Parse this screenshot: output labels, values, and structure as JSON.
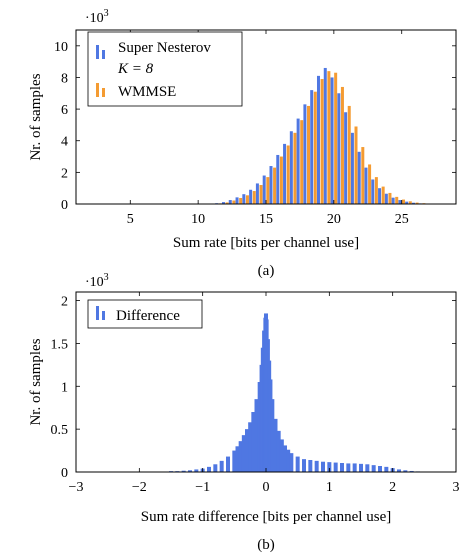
{
  "chart_data": [
    {
      "type": "bar",
      "caption": "(a)",
      "xlabel": "Sum rate [bits per channel use]",
      "ylabel": "Nr. of samples",
      "y_multiplier_base": "·10",
      "y_multiplier_exp": "3",
      "xlim": [
        1,
        29
      ],
      "ylim": [
        0,
        11
      ],
      "xticks": [
        5,
        10,
        15,
        20,
        25
      ],
      "yticks": [
        0,
        2,
        4,
        6,
        8,
        10
      ],
      "legend_position": "top-left",
      "x": [
        11.5,
        12,
        12.5,
        13,
        13.5,
        14,
        14.5,
        15,
        15.5,
        16,
        16.5,
        17,
        17.5,
        18,
        18.5,
        19,
        19.5,
        20,
        20.5,
        21,
        21.5,
        22,
        22.5,
        23,
        23.5,
        24,
        24.5,
        25,
        25.5,
        26,
        26.5
      ],
      "series": [
        {
          "name_line1": "Super Nesterov",
          "name_line2": "K = 8",
          "color": "#4f77e2",
          "values": [
            0.05,
            0.12,
            0.25,
            0.42,
            0.62,
            0.9,
            1.3,
            1.8,
            2.4,
            3.1,
            3.8,
            4.6,
            5.4,
            6.3,
            7.2,
            8.1,
            8.6,
            8.0,
            7.0,
            5.8,
            4.5,
            3.3,
            2.3,
            1.55,
            1.0,
            0.65,
            0.4,
            0.25,
            0.15,
            0.08,
            0.04
          ]
        },
        {
          "name": "WMMSE",
          "color": "#f49b32",
          "values": [
            0.04,
            0.1,
            0.22,
            0.38,
            0.55,
            0.82,
            1.2,
            1.7,
            2.3,
            3.0,
            3.7,
            4.5,
            5.3,
            6.2,
            7.1,
            7.9,
            8.4,
            8.3,
            7.4,
            6.2,
            4.9,
            3.6,
            2.5,
            1.7,
            1.1,
            0.7,
            0.45,
            0.28,
            0.17,
            0.09,
            0.05
          ]
        }
      ]
    },
    {
      "type": "bar",
      "caption": "(b)",
      "xlabel": "Sum rate difference [bits per channel use]",
      "ylabel": "Nr. of samples",
      "y_multiplier_base": "·10",
      "y_multiplier_exp": "3",
      "xlim": [
        -3,
        3
      ],
      "ylim": [
        0,
        2.1
      ],
      "xticks": [
        -3,
        -2,
        -1,
        0,
        1,
        2,
        3
      ],
      "xtick_labels": [
        "−3",
        "−2",
        "−1",
        "0",
        "1",
        "2",
        "3"
      ],
      "yticks": [
        0,
        0.5,
        1,
        1.5,
        2
      ],
      "ytick_labels": [
        "0",
        "0.5",
        "1",
        "1.5",
        "2"
      ],
      "legend_position": "top-left",
      "bin_width": 0.02,
      "x": [
        -2.9,
        -2.8,
        -2.7,
        -2.6,
        -2.5,
        -2.4,
        -2.3,
        -2.2,
        -2.1,
        -2.0,
        -1.9,
        -1.8,
        -1.7,
        -1.6,
        -1.5,
        -1.4,
        -1.3,
        -1.2,
        -1.1,
        -1.0,
        -0.9,
        -0.8,
        -0.7,
        -0.6,
        -0.5,
        -0.45,
        -0.4,
        -0.35,
        -0.3,
        -0.25,
        -0.2,
        -0.15,
        -0.1,
        -0.07,
        -0.05,
        -0.03,
        -0.01,
        0.0,
        0.01,
        0.03,
        0.05,
        0.07,
        0.1,
        0.15,
        0.2,
        0.25,
        0.3,
        0.35,
        0.4,
        0.5,
        0.6,
        0.7,
        0.8,
        0.9,
        1.0,
        1.1,
        1.2,
        1.3,
        1.4,
        1.5,
        1.6,
        1.7,
        1.8,
        1.9,
        2.0,
        2.1,
        2.2,
        2.3,
        2.4,
        2.5,
        2.6,
        2.7,
        2.8,
        2.9
      ],
      "series": [
        {
          "name": "Difference",
          "color": "#4f77e2",
          "values": [
            0.0,
            0.0,
            0.0,
            0.0,
            0.0,
            0.0,
            0.0,
            0.0,
            0.0,
            0.0,
            0.0,
            0.0,
            0.005,
            0.005,
            0.01,
            0.01,
            0.015,
            0.02,
            0.03,
            0.04,
            0.06,
            0.09,
            0.13,
            0.18,
            0.25,
            0.3,
            0.36,
            0.43,
            0.5,
            0.58,
            0.7,
            0.85,
            1.05,
            1.25,
            1.45,
            1.65,
            1.8,
            1.85,
            1.78,
            1.55,
            1.3,
            1.08,
            0.85,
            0.62,
            0.48,
            0.38,
            0.31,
            0.26,
            0.22,
            0.18,
            0.15,
            0.14,
            0.13,
            0.12,
            0.115,
            0.11,
            0.105,
            0.1,
            0.1,
            0.095,
            0.09,
            0.08,
            0.07,
            0.06,
            0.045,
            0.03,
            0.02,
            0.012,
            0.007,
            0.004,
            0.002,
            0.001,
            0.0,
            0.0
          ]
        }
      ]
    }
  ]
}
